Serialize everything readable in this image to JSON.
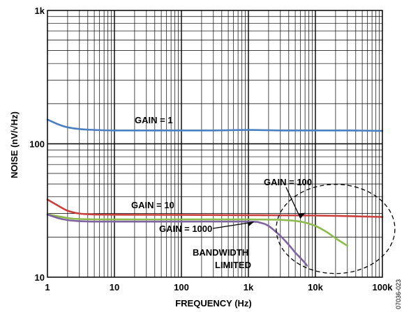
{
  "chart_data": {
    "type": "line",
    "xscale": "log",
    "yscale": "log",
    "xlim": [
      1,
      100000
    ],
    "ylim": [
      10,
      1000
    ],
    "xlabel": "FREQUENCY (Hz)",
    "ylabel": "NOISE (nV/√Hz)",
    "x_ticks": [
      1,
      10,
      100,
      1000,
      10000,
      100000
    ],
    "x_tick_labels": [
      "1",
      "10",
      "100",
      "1k",
      "10k",
      "100k"
    ],
    "y_ticks": [
      10,
      100,
      1000
    ],
    "y_tick_labels": [
      "10",
      "100",
      "1k"
    ],
    "grid": true,
    "series": [
      {
        "name": "GAIN = 1",
        "color": "#4a7fc1",
        "x": [
          1,
          1.5,
          2,
          3,
          5,
          10,
          30,
          100,
          300,
          1000,
          3000,
          10000,
          30000,
          100000
        ],
        "y": [
          152,
          139,
          133,
          129,
          127,
          126,
          126,
          126,
          126,
          127,
          126,
          126,
          126,
          125
        ]
      },
      {
        "name": "GAIN = 10",
        "color": "#c9413c",
        "x": [
          1,
          1.5,
          2,
          3,
          5,
          10,
          100,
          1000,
          10000,
          100000
        ],
        "y": [
          38.2,
          34,
          31.5,
          30,
          29.5,
          29.4,
          29.3,
          29.2,
          29.0,
          28.3
        ]
      },
      {
        "name": "GAIN = 100",
        "color": "#8dbb4e",
        "x": [
          1,
          2,
          3,
          10,
          100,
          1000,
          3000,
          6000,
          10000,
          15000,
          20000,
          30000
        ],
        "y": [
          29.6,
          27.8,
          27.3,
          27.1,
          27.1,
          27.1,
          26.9,
          26.1,
          24.2,
          21.7,
          19.6,
          17.2
        ]
      },
      {
        "name": "GAIN = 1000",
        "color": "#8064a2",
        "x": [
          1,
          1.5,
          2,
          3,
          5,
          10,
          100,
          1000,
          1500,
          2000,
          3000,
          4000,
          5000,
          6000,
          7000,
          7500
        ],
        "y": [
          29.5,
          27.6,
          26.8,
          26.3,
          26.1,
          26.1,
          26.1,
          26.1,
          25.6,
          24.2,
          20.4,
          17.5,
          15.3,
          13.9,
          12.8,
          12.2
        ]
      }
    ],
    "annotations": [
      {
        "text": "BANDWIDTH",
        "note": "bandwidth"
      },
      {
        "text": "LIMITED",
        "note": "bandwidth"
      }
    ]
  },
  "figure_id": "07036-023"
}
